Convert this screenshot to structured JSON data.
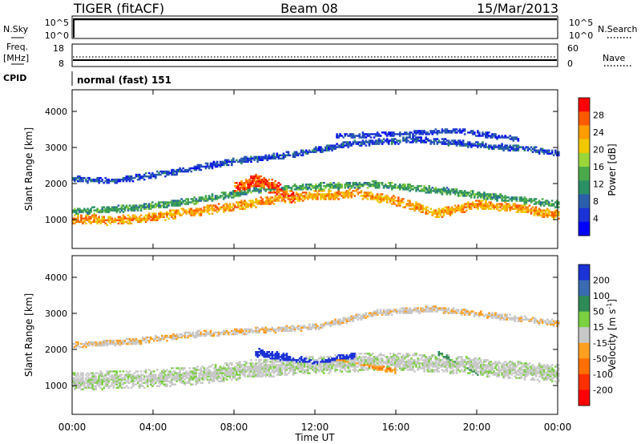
{
  "header": {
    "radar": "TIGER (fitACF)",
    "beam": "Beam 08",
    "date": "15/Mar/2013"
  },
  "top_panels": {
    "nsky_label": "N.Sky",
    "nsearch_label": "N.Search",
    "noise_ticks_left": [
      "10^5",
      "10^0"
    ],
    "noise_ticks_right": [
      "10^5",
      "10^0"
    ],
    "freq_label_1": "Freq.",
    "freq_label_2": "[MHz]",
    "freq_ticks": [
      "18",
      "8"
    ],
    "nave_label": "Nave",
    "nave_ticks": [
      "60",
      "0"
    ],
    "cpid_label": "CPID",
    "cpid_text": "normal (fast) 151"
  },
  "colorbars": {
    "power": {
      "label": "Power [dB]",
      "ticks": [
        "28",
        "24",
        "20",
        "16",
        "12",
        "8",
        "4"
      ],
      "colors": [
        "#ff0000",
        "#ff5a00",
        "#ff9c00",
        "#f0c800",
        "#9ad63a",
        "#4aaa4a",
        "#2b8f66",
        "#2b5faa",
        "#1a32d6",
        "#0000ff"
      ]
    },
    "velocity": {
      "label_main": "Velocity [m s",
      "label_sup": "-1",
      "label_end": "]",
      "ticks": [
        "200",
        "100",
        "50",
        "15",
        "-15",
        "-50",
        "-100",
        "-200"
      ],
      "colors": [
        "#1a32d6",
        "#3a6ab0",
        "#2e8b57",
        "#7ad040",
        "#c8c8c8",
        "#ffa020",
        "#ff7000",
        "#ff3000",
        "#ff0000"
      ]
    }
  },
  "chart_data": [
    {
      "type": "heatmap",
      "title": "Power [dB]",
      "ylabel": "Slant Range [km]",
      "xlabel": "Time UT",
      "x_ticks": [
        "00:00",
        "04:00",
        "08:00",
        "12:00",
        "16:00",
        "20:00",
        "00:00"
      ],
      "y_ticks": [
        1000,
        2000,
        3000,
        4000
      ],
      "xlim": [
        0,
        24
      ],
      "ylim": [
        200,
        4600
      ],
      "color_scale": [
        0,
        30
      ],
      "bands": [
        {
          "points": [
            [
              0,
              1000
            ],
            [
              2,
              950
            ],
            [
              4,
              1050
            ],
            [
              6,
              1200
            ],
            [
              8,
              1350
            ],
            [
              10,
              1550
            ],
            [
              12,
              1650
            ],
            [
              14,
              1700
            ],
            [
              16,
              1500
            ],
            [
              18,
              1150
            ],
            [
              20,
              1400
            ],
            [
              22,
              1300
            ],
            [
              24,
              1100
            ]
          ],
          "width": 260,
          "value": 22
        },
        {
          "points": [
            [
              0,
              1200
            ],
            [
              3,
              1300
            ],
            [
              6,
              1500
            ],
            [
              9,
              1800
            ],
            [
              12,
              1900
            ],
            [
              15,
              1950
            ],
            [
              18,
              1800
            ],
            [
              21,
              1600
            ],
            [
              24,
              1400
            ]
          ],
          "width": 200,
          "value": 12
        },
        {
          "points": [
            [
              0,
              2100
            ],
            [
              2,
              2050
            ],
            [
              5,
              2300
            ],
            [
              8,
              2600
            ],
            [
              11,
              2800
            ],
            [
              14,
              3100
            ],
            [
              17,
              3200
            ],
            [
              20,
              3050
            ],
            [
              23,
              2900
            ],
            [
              24,
              2800
            ]
          ],
          "width": 180,
          "value": 6
        },
        {
          "points": [
            [
              13,
              3300
            ],
            [
              16,
              3350
            ],
            [
              19,
              3450
            ],
            [
              22,
              3200
            ]
          ],
          "width": 150,
          "value": 5
        },
        {
          "points": [
            [
              8,
              1800
            ],
            [
              9,
              2050
            ],
            [
              10,
              1850
            ],
            [
              11,
              1600
            ]
          ],
          "width": 420,
          "value": 26
        }
      ]
    },
    {
      "type": "heatmap",
      "title": "Velocity [m s-1]",
      "ylabel": "Slant Range [km]",
      "xlabel": "Time UT",
      "x_ticks": [
        "00:00",
        "04:00",
        "08:00",
        "12:00",
        "16:00",
        "20:00",
        "00:00"
      ],
      "y_ticks": [
        1000,
        2000,
        3000,
        4000
      ],
      "xlim": [
        0,
        24
      ],
      "ylim": [
        200,
        4600
      ],
      "color_scale": [
        -250,
        250
      ],
      "bands": [
        {
          "points": [
            [
              0,
              1100
            ],
            [
              3,
              1150
            ],
            [
              6,
              1250
            ],
            [
              9,
              1450
            ],
            [
              12,
              1550
            ],
            [
              15,
              1650
            ],
            [
              18,
              1600
            ],
            [
              21,
              1450
            ],
            [
              24,
              1300
            ]
          ],
          "width": 500,
          "value": 0
        },
        {
          "points": [
            [
              0,
              2100
            ],
            [
              3,
              2200
            ],
            [
              6,
              2400
            ],
            [
              9,
              2500
            ],
            [
              12,
              2600
            ],
            [
              15,
              3000
            ],
            [
              18,
              3100
            ],
            [
              21,
              2900
            ],
            [
              24,
              2700
            ]
          ],
          "width": 180,
          "value": -20
        },
        {
          "points": [
            [
              9,
              1900
            ],
            [
              11,
              1700
            ],
            [
              12,
              1600
            ],
            [
              13,
              1700
            ],
            [
              14,
              1800
            ]
          ],
          "width": 250,
          "value": 180
        },
        {
          "points": [
            [
              13,
              1700
            ],
            [
              15,
              1500
            ],
            [
              16,
              1400
            ]
          ],
          "width": 200,
          "value": -60
        },
        {
          "points": [
            [
              18,
              1900
            ],
            [
              19,
              1600
            ],
            [
              20,
              1300
            ]
          ],
          "width": 150,
          "value": 40
        }
      ]
    }
  ]
}
